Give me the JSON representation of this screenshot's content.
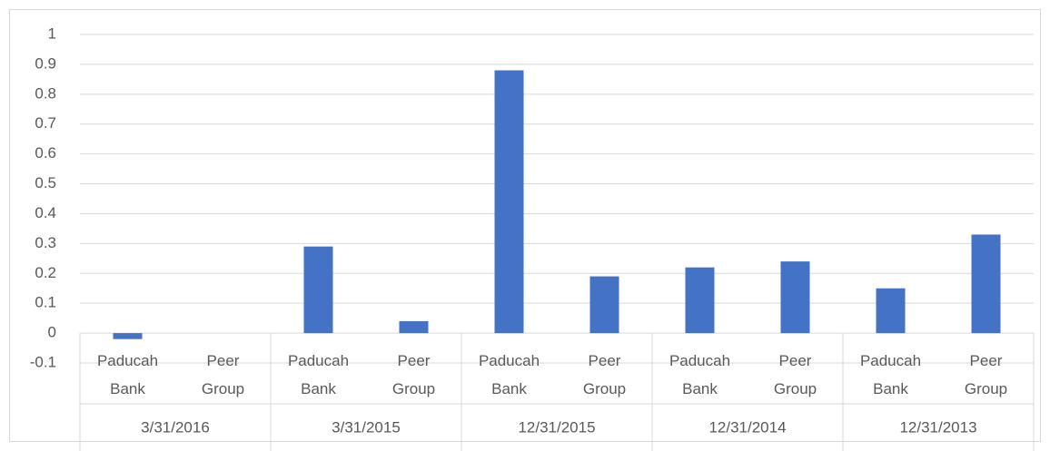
{
  "chart_data": {
    "type": "bar",
    "categories": [
      "Paducah Bank",
      "Peer Group",
      "Paducah Bank",
      "Peer Group",
      "Paducah Bank",
      "Peer Group",
      "Paducah Bank",
      "Peer Group",
      "Paducah Bank",
      "Peer Group"
    ],
    "groups": [
      "3/31/2016",
      "3/31/2015",
      "12/31/2015",
      "12/31/2014",
      "12/31/2013"
    ],
    "values": [
      -0.02,
      0,
      0.29,
      0.04,
      0.88,
      0.19,
      0.22,
      0.24,
      0.15,
      0.33
    ],
    "color": "#4472c4",
    "ylim": [
      -0.1,
      1
    ],
    "yticks": [
      -0.1,
      0,
      0.1,
      0.2,
      0.3,
      0.4,
      0.5,
      0.6,
      0.7,
      0.8,
      0.9,
      1
    ],
    "grid": true
  }
}
